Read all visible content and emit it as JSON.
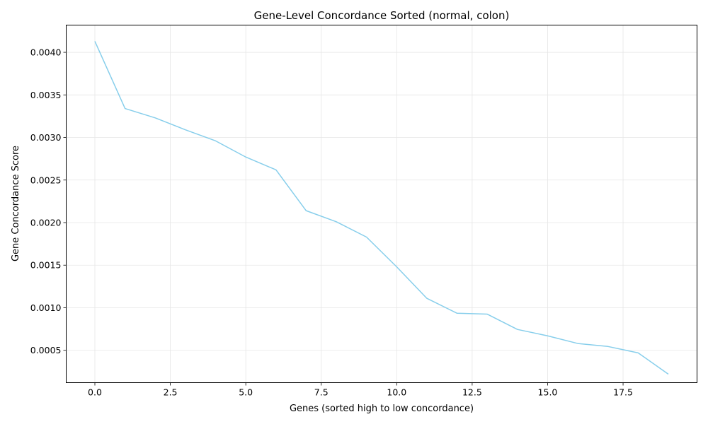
{
  "chart_data": {
    "type": "line",
    "title": "Gene-Level Concordance Sorted (normal, colon)",
    "xlabel": "Genes (sorted high to low concordance)",
    "ylabel": "Gene Concordance Score",
    "xlim": [
      -0.95,
      19.95
    ],
    "ylim": [
      0.00012,
      0.00432
    ],
    "xticks": [
      0.0,
      2.5,
      5.0,
      7.5,
      10.0,
      12.5,
      15.0,
      17.5
    ],
    "xtick_labels": [
      "0.0",
      "2.5",
      "5.0",
      "7.5",
      "10.0",
      "12.5",
      "15.0",
      "17.5"
    ],
    "yticks": [
      0.0005,
      0.001,
      0.0015,
      0.002,
      0.0025,
      0.003,
      0.0035,
      0.004
    ],
    "ytick_labels": [
      "0.0005",
      "0.0010",
      "0.0015",
      "0.0020",
      "0.0025",
      "0.0030",
      "0.0035",
      "0.0040"
    ],
    "grid": true,
    "line_color": "#87ceeb",
    "series": [
      {
        "x": [
          0,
          1,
          2,
          3,
          4,
          5,
          6,
          7,
          8,
          9,
          10,
          11,
          12,
          13,
          14,
          15,
          16,
          17,
          18,
          19
        ],
        "values": [
          0.00413,
          0.00334,
          0.00323,
          0.00309,
          0.00296,
          0.00277,
          0.00262,
          0.00214,
          0.00201,
          0.00183,
          0.00148,
          0.00111,
          0.000935,
          0.000925,
          0.000745,
          0.00067,
          0.00058,
          0.000545,
          0.00047,
          0.00022
        ]
      }
    ]
  }
}
